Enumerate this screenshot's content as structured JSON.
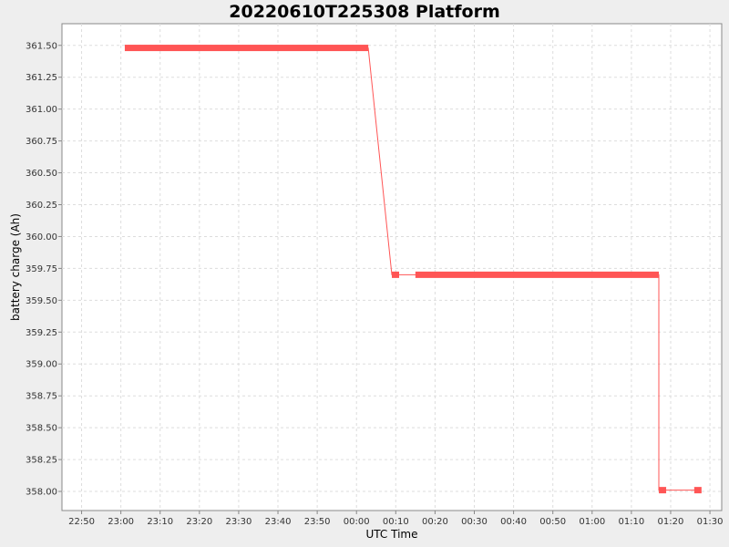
{
  "chart_data": {
    "type": "line",
    "title": "20220610T225308 Platform",
    "xlabel": "UTC Time",
    "ylabel": "battery charge (Ah)",
    "xlim": [
      "22:45",
      "01:33"
    ],
    "ylim": [
      357.85,
      361.67
    ],
    "grid": true,
    "x_ticks": [
      "22:50",
      "23:00",
      "23:10",
      "23:20",
      "23:30",
      "23:40",
      "23:50",
      "00:00",
      "00:10",
      "00:20",
      "00:30",
      "00:40",
      "00:50",
      "01:00",
      "01:10",
      "01:20",
      "01:30"
    ],
    "y_ticks": [
      "358.00",
      "358.25",
      "358.50",
      "358.75",
      "359.00",
      "359.25",
      "359.50",
      "359.75",
      "360.00",
      "360.25",
      "360.50",
      "360.75",
      "361.00",
      "361.25",
      "361.50"
    ],
    "series": [
      {
        "color": "#ff5555",
        "points": [
          {
            "x": "23:01",
            "y": 361.48
          },
          {
            "x": "00:03",
            "y": 361.48
          },
          {
            "x": "00:09",
            "y": 359.7
          },
          {
            "x": "00:10",
            "y": 359.7
          },
          {
            "x": "00:15",
            "y": 359.7
          },
          {
            "x": "01:17",
            "y": 359.7
          },
          {
            "x": "01:17",
            "y": 358.01
          },
          {
            "x": "01:18",
            "y": 358.01
          },
          {
            "x": "01:26",
            "y": 358.01
          },
          {
            "x": "01:27",
            "y": 358.01
          }
        ],
        "thick_segments": [
          [
            "23:01",
            "00:03",
            361.48
          ],
          [
            "00:09",
            "00:10",
            359.7
          ],
          [
            "00:15",
            "01:17",
            359.7
          ],
          [
            "01:17",
            "01:18",
            358.01
          ],
          [
            "01:26",
            "01:27",
            358.01
          ]
        ]
      }
    ]
  }
}
